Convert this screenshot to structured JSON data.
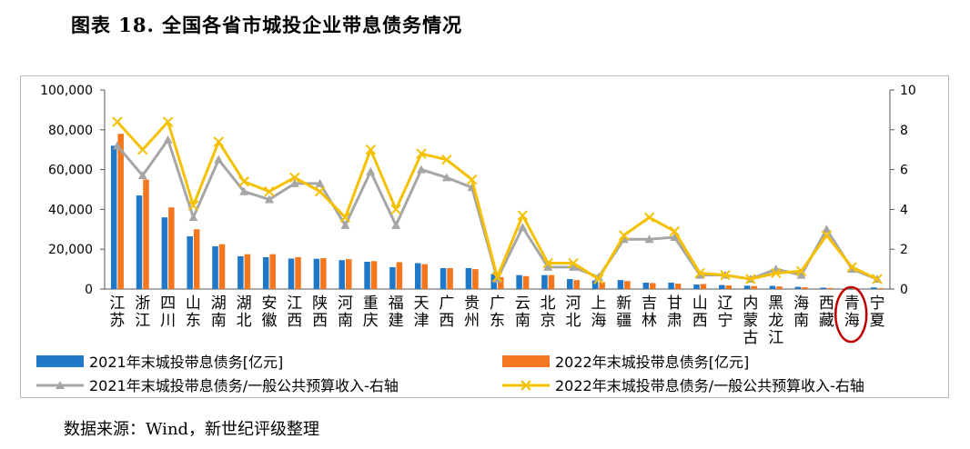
{
  "figure_title": "图表 18. 全国各省市城投企业带息债务情况",
  "source_note": "数据来源：Wind，新世纪评级整理",
  "colors": {
    "bar2021": "#1f78c8",
    "bar2022": "#f4761d",
    "line2021": "#a6a6a6",
    "line2022": "#f5c000",
    "highlight": "#c00000"
  },
  "chart_data": {
    "type": "bar",
    "categories": [
      "江苏",
      "浙江",
      "四川",
      "山东",
      "湖南",
      "湖北",
      "安徽",
      "江西",
      "陕西",
      "河南",
      "重庆",
      "福建",
      "天津",
      "广西",
      "贵州",
      "广东",
      "云南",
      "北京",
      "河北",
      "上海",
      "新疆",
      "吉林",
      "甘肃",
      "山西",
      "辽宁",
      "内蒙古",
      "黑龙江",
      "海南",
      "西藏",
      "青海",
      "宁夏"
    ],
    "series": [
      {
        "name": "2021年末城投带息债务[亿元]",
        "axis": "left",
        "type": "bar",
        "values": [
          72000,
          47000,
          36000,
          26500,
          21500,
          16500,
          16000,
          15300,
          15200,
          14500,
          13700,
          11000,
          13000,
          10500,
          10500,
          7500,
          7000,
          7000,
          5000,
          4300,
          4500,
          3200,
          3200,
          2300,
          2000,
          1700,
          1600,
          1100,
          700,
          900,
          800
        ]
      },
      {
        "name": "2022年末城投带息债务[亿元]",
        "axis": "left",
        "type": "bar",
        "values": [
          78000,
          55000,
          41000,
          30000,
          22500,
          17500,
          17500,
          16000,
          15500,
          15000,
          14000,
          13500,
          12500,
          10500,
          10000,
          6000,
          6500,
          7000,
          4500,
          3500,
          4000,
          3000,
          2700,
          2500,
          1800,
          1500,
          1300,
          900,
          500,
          600,
          400
        ]
      },
      {
        "name": "2021年末城投带息债务/一般公共预算收入-右轴",
        "axis": "right",
        "type": "line",
        "values": [
          7.2,
          5.7,
          7.5,
          3.6,
          6.5,
          4.9,
          4.5,
          5.3,
          5.3,
          3.2,
          5.9,
          3.2,
          6.0,
          5.6,
          5.1,
          0.5,
          3.1,
          1.1,
          1.1,
          0.6,
          2.5,
          2.5,
          2.6,
          0.7,
          0.7,
          0.5,
          1.0,
          0.7,
          3.0,
          1.0,
          0.5
        ]
      },
      {
        "name": "2022年末城投带息债务/一般公共预算收入-右轴",
        "axis": "right",
        "type": "line",
        "values": [
          8.4,
          7.0,
          8.4,
          4.2,
          7.4,
          5.4,
          4.9,
          5.6,
          4.9,
          3.6,
          7.0,
          4.0,
          6.8,
          6.5,
          5.5,
          0.6,
          3.7,
          1.3,
          1.3,
          0.5,
          2.7,
          3.6,
          2.9,
          0.8,
          0.7,
          0.5,
          0.8,
          0.9,
          2.7,
          1.1,
          0.5
        ]
      }
    ],
    "y_left": {
      "min": 0,
      "max": 100000,
      "ticks": [
        "0",
        "20,000",
        "40,000",
        "60,000",
        "80,000",
        "100,000"
      ]
    },
    "y_right": {
      "min": 0,
      "max": 10,
      "ticks": [
        "0",
        "2",
        "4",
        "6",
        "8",
        "10"
      ]
    },
    "highlight_category": "青海",
    "legend": [
      "2021年末城投带息债务[亿元]",
      "2022年末城投带息债务[亿元]",
      "2021年末城投带息债务/一般公共预算收入-右轴",
      "2022年末城投带息债务/一般公共预算收入-右轴"
    ],
    "legend_position": "bottom"
  }
}
